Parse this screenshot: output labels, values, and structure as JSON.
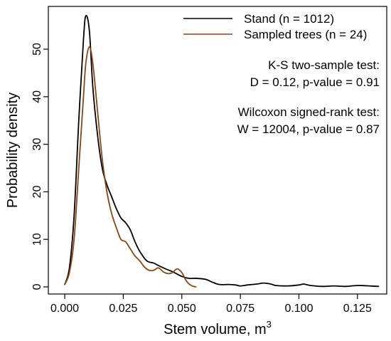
{
  "chart_data": {
    "type": "line",
    "title": "",
    "xlabel": "Stem volume, m",
    "xlabel_superscript": "3",
    "ylabel": "Probability density",
    "xlim": [
      -0.007,
      0.1375
    ],
    "ylim": [
      -1.5,
      59
    ],
    "x_ticks": [
      0.0,
      0.025,
      0.05,
      0.075,
      0.1,
      0.125
    ],
    "x_tick_labels": [
      "0.000",
      "0.025",
      "0.050",
      "0.075",
      "0.100",
      "0.125"
    ],
    "y_ticks": [
      0,
      10,
      20,
      30,
      40,
      50
    ],
    "y_tick_labels": [
      "0",
      "10",
      "20",
      "30",
      "40",
      "50"
    ],
    "grid": false,
    "legend_position": "top-right",
    "series": [
      {
        "name": "Stand (n = 1012)",
        "color": "#000000",
        "points": [
          [
            0.0,
            0.5
          ],
          [
            0.002,
            4
          ],
          [
            0.004,
            15
          ],
          [
            0.006,
            35
          ],
          [
            0.008,
            52
          ],
          [
            0.009,
            57
          ],
          [
            0.0105,
            54
          ],
          [
            0.012,
            42
          ],
          [
            0.014,
            32
          ],
          [
            0.016,
            25
          ],
          [
            0.018,
            21.5
          ],
          [
            0.02,
            19
          ],
          [
            0.022,
            16.5
          ],
          [
            0.024,
            14.5
          ],
          [
            0.026,
            13.5
          ],
          [
            0.028,
            12
          ],
          [
            0.03,
            9.5
          ],
          [
            0.032,
            7.5
          ],
          [
            0.035,
            5.5
          ],
          [
            0.038,
            5
          ],
          [
            0.04,
            4.5
          ],
          [
            0.043,
            3.8
          ],
          [
            0.046,
            3.2
          ],
          [
            0.05,
            2.2
          ],
          [
            0.053,
            1.8
          ],
          [
            0.056,
            1.8
          ],
          [
            0.06,
            1.6
          ],
          [
            0.063,
            1.0
          ],
          [
            0.066,
            0.5
          ],
          [
            0.07,
            0.5
          ],
          [
            0.073,
            0.4
          ],
          [
            0.075,
            0.2
          ],
          [
            0.078,
            0.4
          ],
          [
            0.082,
            0.6
          ],
          [
            0.085,
            0.8
          ],
          [
            0.088,
            0.6
          ],
          [
            0.09,
            0.3
          ],
          [
            0.095,
            0.2
          ],
          [
            0.1,
            0.4
          ],
          [
            0.102,
            0.6
          ],
          [
            0.105,
            0.3
          ],
          [
            0.11,
            0.1
          ],
          [
            0.115,
            0.2
          ],
          [
            0.12,
            0.1
          ],
          [
            0.125,
            0.3
          ],
          [
            0.13,
            0.2
          ],
          [
            0.134,
            0.1
          ]
        ]
      },
      {
        "name": "Sampled trees (n = 24)",
        "color": "#8B4513",
        "points": [
          [
            0.0,
            0.5
          ],
          [
            0.002,
            3
          ],
          [
            0.004,
            10
          ],
          [
            0.006,
            25
          ],
          [
            0.008,
            40
          ],
          [
            0.009,
            47
          ],
          [
            0.0105,
            50.5
          ],
          [
            0.012,
            47
          ],
          [
            0.014,
            37
          ],
          [
            0.016,
            27
          ],
          [
            0.018,
            20
          ],
          [
            0.02,
            15.5
          ],
          [
            0.022,
            12.5
          ],
          [
            0.024,
            10
          ],
          [
            0.026,
            9.5
          ],
          [
            0.028,
            8
          ],
          [
            0.03,
            6.5
          ],
          [
            0.032,
            5.5
          ],
          [
            0.034,
            4.2
          ],
          [
            0.036,
            3.5
          ],
          [
            0.038,
            3.5
          ],
          [
            0.04,
            4.0
          ],
          [
            0.042,
            3.2
          ],
          [
            0.044,
            2.8
          ],
          [
            0.046,
            3.0
          ],
          [
            0.048,
            3.8
          ],
          [
            0.05,
            3.0
          ],
          [
            0.052,
            1.2
          ],
          [
            0.054,
            0.3
          ],
          [
            0.056,
            0.0
          ]
        ]
      }
    ],
    "annotations": [
      "K-S two-sample test:",
      "D = 0.12, p-value = 0.91",
      "Wilcoxon signed-rank test:",
      "W = 12004, p-value = 0.87"
    ]
  }
}
